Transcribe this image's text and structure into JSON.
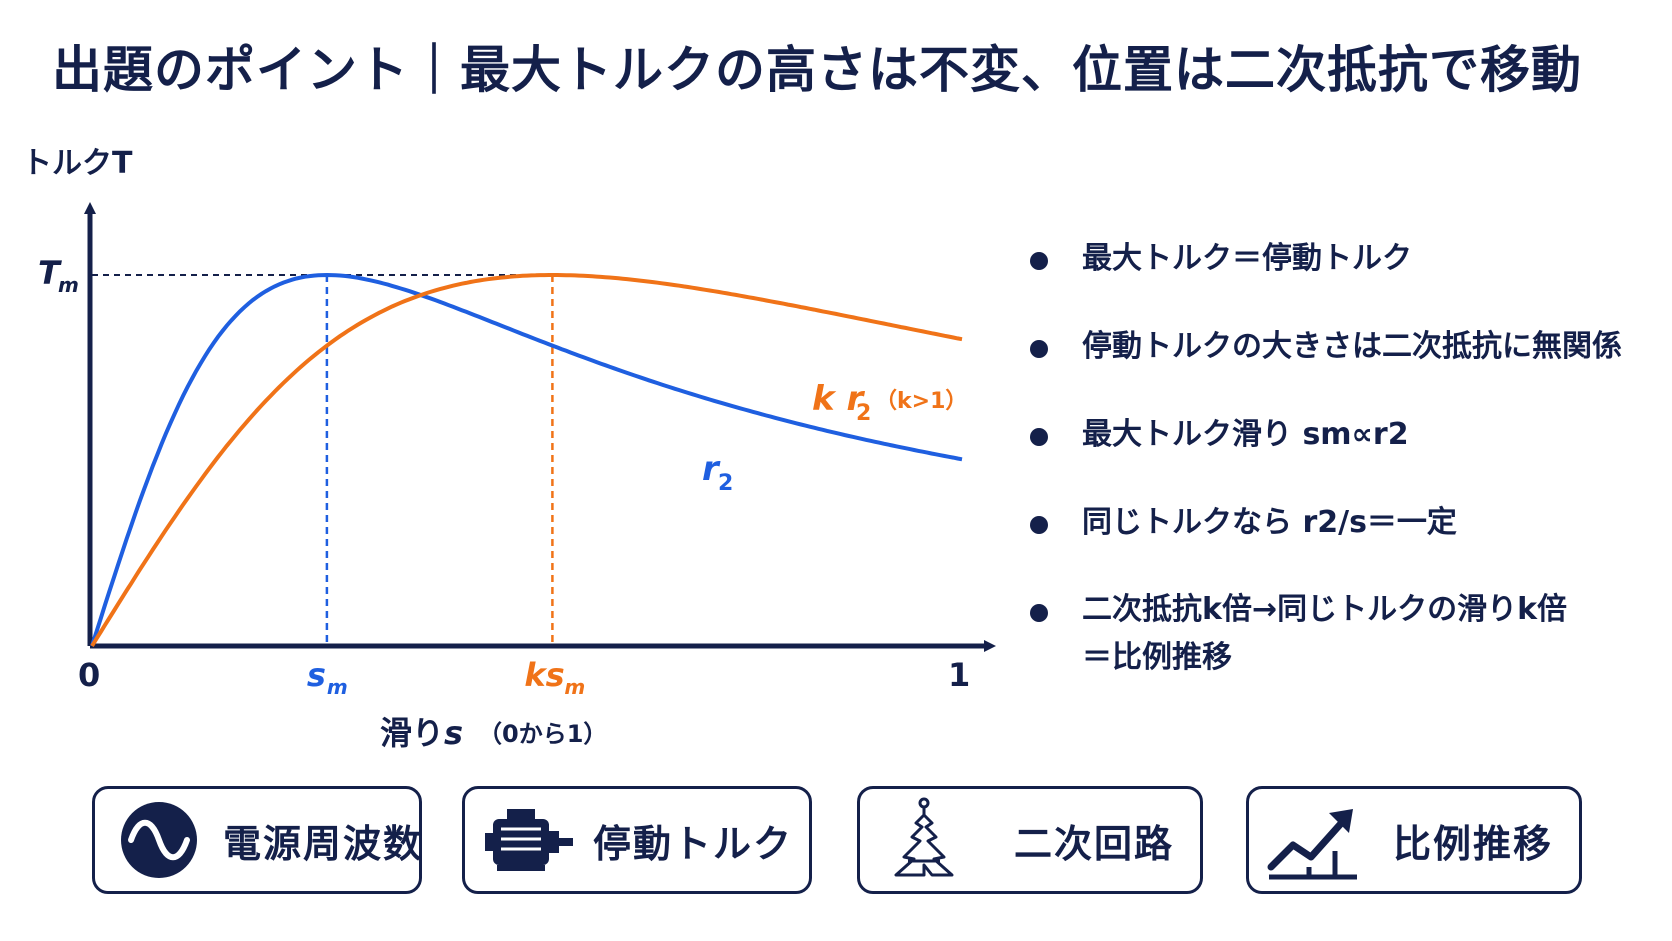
{
  "title": "出題のポイント｜最大トルクの高さは不変、位置は二次抵抗で移動",
  "colors": {
    "navy": "#14204a",
    "blue": "#1f5fe0",
    "orange": "#f07318"
  },
  "chart_data": {
    "type": "line",
    "ylabel": "トルクT",
    "xlabel": "滑りs",
    "xlabel_note": "（0から1）",
    "ytick": "Tm",
    "xticks": [
      "0",
      "sm",
      "ksm",
      "1"
    ],
    "xlim": [
      0,
      1
    ],
    "ylim": [
      0,
      1
    ],
    "sm": 0.27,
    "k": 1.96,
    "series": [
      {
        "name": "r2",
        "color": "#1f5fe0"
      },
      {
        "name": "kr2",
        "note": "（k>1）",
        "color": "#f07318"
      }
    ],
    "grid": false
  },
  "bullets": [
    "最大トルク＝停動トルク",
    "停動トルクの大きさは二次抵抗に無関係",
    "最大トルク滑り sm∝r2",
    "同じトルクなら r2/s＝一定",
    "二次抵抗k倍→同じトルクの滑りk倍",
    "＝比例推移"
  ],
  "cards": [
    {
      "label": "電源周波数",
      "icon": "sine-wave-icon"
    },
    {
      "label": "停動トルク",
      "icon": "motor-icon"
    },
    {
      "label": "二次回路",
      "icon": "circuit-icon"
    },
    {
      "label": "比例推移",
      "icon": "trend-up-icon"
    }
  ]
}
